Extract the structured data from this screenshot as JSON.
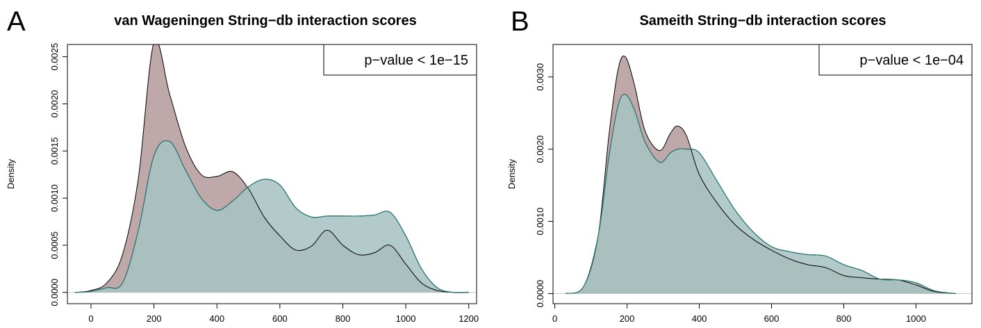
{
  "colors": {
    "a_fill": "#bfa8aa",
    "b_fill": "#a7c3c2",
    "b_line": "#2a7b78",
    "outline": "#000000",
    "zero_line": "#c8c8c8"
  },
  "chart_data": [
    {
      "panel_letter": "A",
      "type": "area",
      "title": "van Wageningen String−db interaction scores",
      "xlabel": "",
      "ylabel": "Density",
      "legend_text": "p−value < 1e−15",
      "legend_position": "top-right",
      "xlim": [
        -75,
        1225
      ],
      "ylim": [
        -0.00012,
        0.00263
      ],
      "xticks": [
        0,
        200,
        400,
        600,
        800,
        1000,
        1200
      ],
      "yticks": [
        0.0,
        0.0005,
        0.001,
        0.0015,
        0.002,
        0.0025
      ],
      "ytick_labels": [
        "0.0000",
        "0.0005",
        "0.0010",
        "0.0015",
        "0.0020",
        "0.0025"
      ],
      "series": [
        {
          "role": "outline",
          "x": [
            -50,
            0,
            50,
            100,
            150,
            200,
            250,
            300,
            350,
            400,
            450,
            500,
            550,
            600,
            650,
            700,
            750,
            800,
            850,
            900,
            950,
            1000,
            1050,
            1100,
            1150,
            1200
          ],
          "y": [
            0.0,
            2e-05,
            0.0001,
            0.0004,
            0.0012,
            0.00265,
            0.0021,
            0.00155,
            0.00125,
            0.00123,
            0.00128,
            0.0011,
            0.0008,
            0.0006,
            0.00045,
            0.00049,
            0.00066,
            0.0005,
            0.0004,
            0.00042,
            0.0005,
            0.0003,
            0.0001,
            2e-05,
            0.0,
            0.0
          ]
        },
        {
          "role": "outline",
          "x": [
            -50,
            0,
            50,
            100,
            150,
            200,
            250,
            300,
            350,
            400,
            450,
            500,
            550,
            600,
            650,
            700,
            750,
            800,
            850,
            900,
            950,
            1000,
            1050,
            1100,
            1150,
            1200
          ],
          "y": [
            0.0,
            1e-05,
            5e-05,
            0.0001,
            0.00065,
            0.00145,
            0.0016,
            0.0013,
            0.001,
            0.00087,
            0.00097,
            0.00112,
            0.0012,
            0.00114,
            0.0009,
            0.0008,
            0.00081,
            0.00081,
            0.00081,
            0.00082,
            0.00085,
            0.0006,
            0.00025,
            5e-05,
            0.0,
            0.0
          ]
        }
      ]
    },
    {
      "panel_letter": "B",
      "type": "area",
      "title": "Sameith String−db interaction scores",
      "xlabel": "",
      "ylabel": "Density",
      "legend_text": "p−value < 1e−04",
      "legend_position": "top-right",
      "xlim": [
        -5,
        1155
      ],
      "ylim": [
        -0.00014,
        0.00345
      ],
      "xticks": [
        0,
        200,
        400,
        600,
        800,
        1000
      ],
      "yticks": [
        0.0,
        0.001,
        0.002,
        0.003
      ],
      "ytick_labels": [
        "0.0000",
        "0.0010",
        "0.0020",
        "0.0030"
      ],
      "series": [
        {
          "role": "outline",
          "x": [
            30,
            80,
            120,
            150,
            175,
            195,
            220,
            250,
            290,
            320,
            340,
            365,
            400,
            450,
            500,
            550,
            600,
            650,
            700,
            750,
            800,
            850,
            900,
            950,
            1000,
            1050,
            1110
          ],
          "y": [
            0.0,
            0.0001,
            0.0008,
            0.0022,
            0.0031,
            0.00328,
            0.0029,
            0.00225,
            0.00198,
            0.00222,
            0.00232,
            0.00218,
            0.00165,
            0.00125,
            0.00095,
            0.00075,
            0.0006,
            0.00048,
            0.0004,
            0.00036,
            0.00025,
            0.00022,
            0.0002,
            0.00019,
            0.00012,
            3e-05,
            0.0
          ]
        },
        {
          "role": "outline",
          "x": [
            30,
            80,
            120,
            150,
            175,
            195,
            220,
            250,
            290,
            320,
            340,
            365,
            400,
            450,
            500,
            550,
            600,
            650,
            700,
            750,
            800,
            850,
            900,
            950,
            1000,
            1050,
            1110
          ],
          "y": [
            0.0,
            0.0001,
            0.0008,
            0.0019,
            0.0026,
            0.00276,
            0.00255,
            0.0021,
            0.00182,
            0.00195,
            0.002,
            0.002,
            0.00195,
            0.00155,
            0.00115,
            0.00085,
            0.00065,
            0.00058,
            0.00054,
            0.00052,
            0.0004,
            0.00032,
            0.0002,
            0.00019,
            0.00015,
            4e-05,
            0.0
          ]
        }
      ]
    }
  ]
}
